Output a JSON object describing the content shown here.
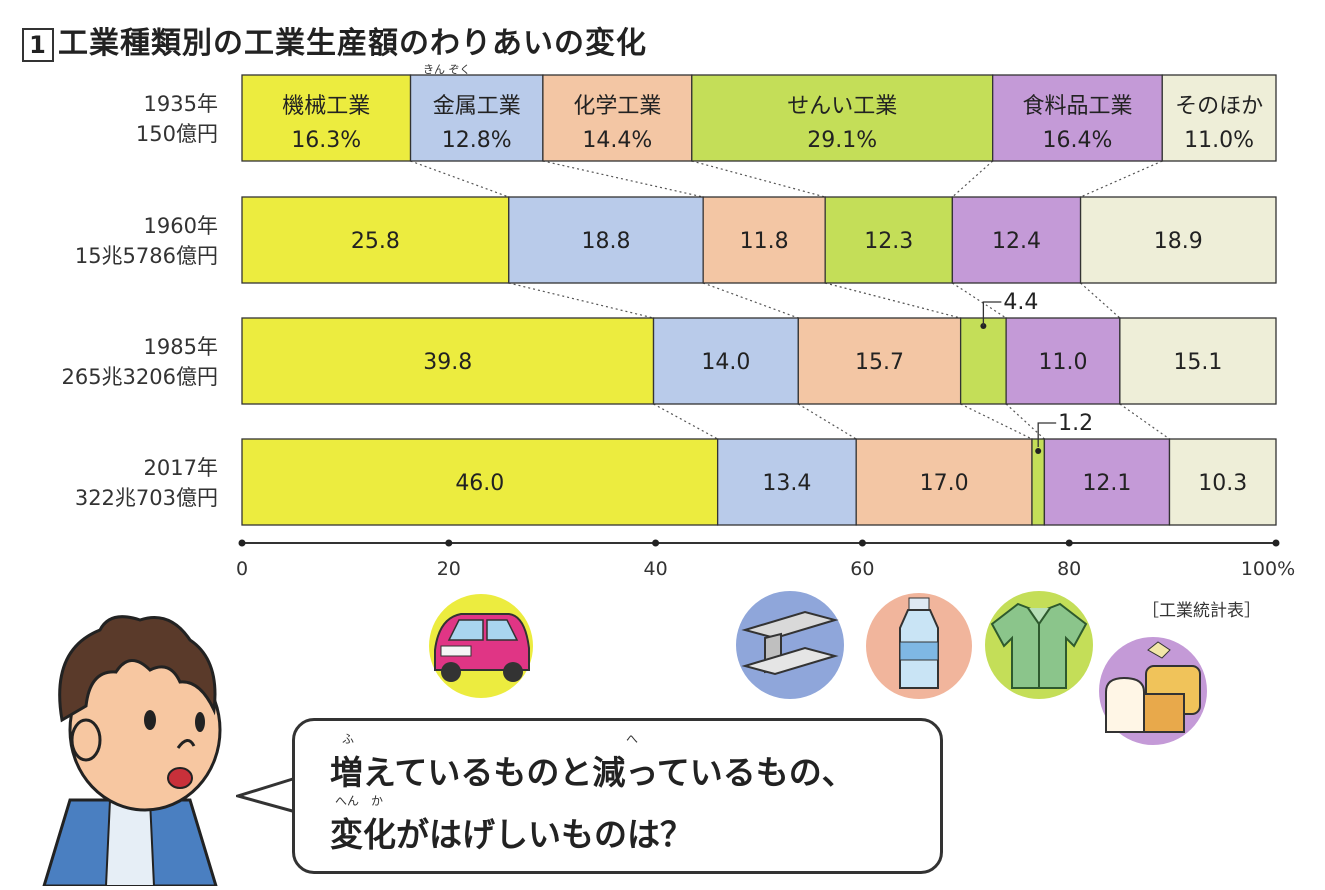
{
  "title": {
    "number": "1",
    "text": "工業種類別の工業生産額のわりあいの変化"
  },
  "source": "［工業統計表］",
  "colors": {
    "machinery": "#ecec3f",
    "metal": "#b9cbea",
    "chemical": "#f3c6a4",
    "textile": "#c4de58",
    "food": "#c49ad7",
    "other": "#eeeed8"
  },
  "chart_data": {
    "type": "bar",
    "orientation": "horizontal-stacked-100",
    "categories": [
      "1935年\n150億円",
      "1960年\n15兆5786億円",
      "1985年\n265兆3206億円",
      "2017年\n322兆703億円"
    ],
    "years": [
      {
        "year": "1935年",
        "total": "150億円"
      },
      {
        "year": "1960年",
        "total": "15兆5786億円"
      },
      {
        "year": "1985年",
        "total": "265兆3206億円"
      },
      {
        "year": "2017年",
        "total": "322兆703億円"
      }
    ],
    "series": [
      {
        "name": "機械工業",
        "values": [
          16.3,
          25.8,
          39.8,
          46.0
        ]
      },
      {
        "name": "金属工業",
        "values": [
          12.8,
          18.8,
          14.0,
          13.4
        ]
      },
      {
        "name": "化学工業",
        "values": [
          14.4,
          11.8,
          15.7,
          17.0
        ]
      },
      {
        "name": "せんい工業",
        "values": [
          29.1,
          12.3,
          4.4,
          1.2
        ]
      },
      {
        "name": "食料品工業",
        "values": [
          16.4,
          12.4,
          11.0,
          12.1
        ]
      },
      {
        "name": "そのほか",
        "values": [
          11.0,
          18.9,
          15.1,
          10.3
        ]
      }
    ],
    "first_row_labels": [
      "16.3%",
      "12.8%",
      "14.4%",
      "29.1%",
      "16.4%",
      "11.0%"
    ],
    "other_row_labels": [
      [
        "25.8",
        "18.8",
        "11.8",
        "12.3",
        "12.4",
        "18.9"
      ],
      [
        "39.8",
        "14.0",
        "15.7",
        "4.4",
        "11.0",
        "15.1"
      ],
      [
        "46.0",
        "13.4",
        "17.0",
        "1.2",
        "12.1",
        "10.3"
      ]
    ],
    "ruby_metal": "きん ぞく",
    "xticks": [
      "0",
      "20",
      "40",
      "60",
      "80",
      "100%"
    ],
    "xlim": [
      0,
      100
    ]
  },
  "bubble": {
    "line1": "増えているものと減っているもの、",
    "line2": "変化がはげしいものは？",
    "ruby1a": "ふ",
    "ruby1b": "へ",
    "ruby2": "へん　か"
  }
}
